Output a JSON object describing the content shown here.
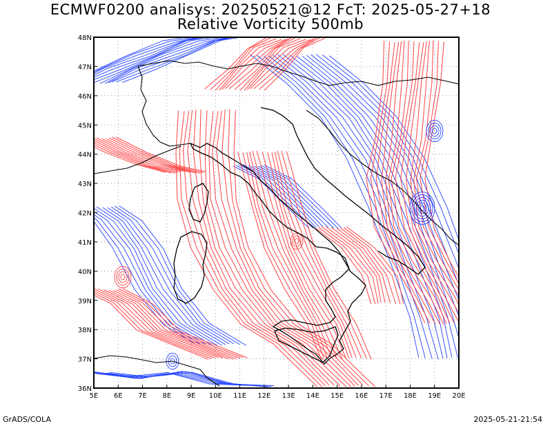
{
  "header": {
    "title_line1": "ECMWF0200 analisys: 20250521@12 FcT: 2025-05-27+18",
    "title_line2": "Relative Vorticity 500mb"
  },
  "footer": {
    "credit": "GrADS/COLA",
    "timestamp": "2025-05-21-21:54"
  },
  "map": {
    "lon_range": [
      5,
      20
    ],
    "lat_range": [
      36,
      48
    ],
    "lon_labels": [
      "5E",
      "6E",
      "7E",
      "8E",
      "9E",
      "10E",
      "11E",
      "12E",
      "13E",
      "14E",
      "15E",
      "16E",
      "17E",
      "18E",
      "19E",
      "20E"
    ],
    "lat_labels": [
      "48N",
      "47N",
      "46N",
      "45N",
      "44N",
      "43N",
      "42N",
      "41N",
      "40N",
      "39N",
      "38N",
      "37N",
      "36N"
    ],
    "colors": {
      "positive_contours": "#ff4040",
      "negative_contours": "#2040ff",
      "coastlines": "#000000",
      "grid": "#8080a0"
    }
  }
}
